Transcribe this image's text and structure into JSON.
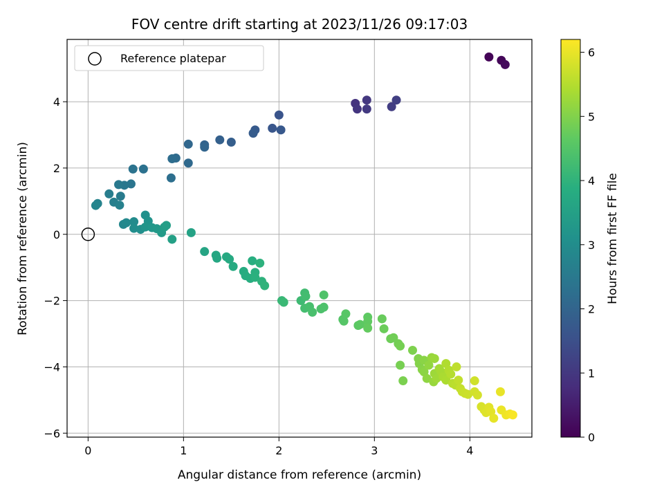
{
  "chart_data": {
    "type": "scatter",
    "title": "FOV centre drift starting at 2023/11/26 09:17:03",
    "xlabel": "Angular distance from reference (arcmin)",
    "ylabel": "Rotation from reference (arcmin)",
    "xlim": [
      -0.22,
      4.65
    ],
    "ylim": [
      -6.12,
      5.88
    ],
    "xticks": [
      0,
      1,
      2,
      3,
      4
    ],
    "xtick_labels": [
      "0",
      "1",
      "2",
      "3",
      "4"
    ],
    "yticks": [
      -6,
      -4,
      -2,
      0,
      2,
      4
    ],
    "ytick_labels": [
      "−6",
      "−4",
      "−2",
      "0",
      "2",
      "4"
    ],
    "grid": true,
    "legend": {
      "position": "top-left",
      "entries": [
        "Reference platepar"
      ]
    },
    "colorbar": {
      "label": "Hours from first FF file",
      "range": [
        0,
        6.2
      ],
      "ticks": [
        0,
        1,
        2,
        3,
        4,
        5,
        6
      ],
      "tick_labels": [
        "0",
        "1",
        "2",
        "3",
        "4",
        "5",
        "6"
      ],
      "colormap": "viridis"
    },
    "reference_point": {
      "x": 0,
      "y": 0
    },
    "points": [
      {
        "x": 4.2,
        "y": 5.35,
        "t": 0.05
      },
      {
        "x": 4.33,
        "y": 5.25,
        "t": 0.1
      },
      {
        "x": 4.37,
        "y": 5.12,
        "t": 0.15
      },
      {
        "x": 2.8,
        "y": 3.95,
        "t": 0.9
      },
      {
        "x": 2.82,
        "y": 3.78,
        "t": 0.95
      },
      {
        "x": 2.92,
        "y": 4.05,
        "t": 1.0
      },
      {
        "x": 2.92,
        "y": 3.78,
        "t": 1.05
      },
      {
        "x": 3.18,
        "y": 3.85,
        "t": 1.1
      },
      {
        "x": 3.23,
        "y": 4.05,
        "t": 1.15
      },
      {
        "x": 2.0,
        "y": 3.6,
        "t": 1.6
      },
      {
        "x": 1.93,
        "y": 3.2,
        "t": 1.65
      },
      {
        "x": 2.02,
        "y": 3.15,
        "t": 1.7
      },
      {
        "x": 1.75,
        "y": 3.15,
        "t": 1.75
      },
      {
        "x": 1.73,
        "y": 3.05,
        "t": 1.8
      },
      {
        "x": 1.5,
        "y": 2.78,
        "t": 1.85
      },
      {
        "x": 1.38,
        "y": 2.85,
        "t": 1.9
      },
      {
        "x": 1.22,
        "y": 2.7,
        "t": 1.95
      },
      {
        "x": 1.22,
        "y": 2.63,
        "t": 2.0
      },
      {
        "x": 1.05,
        "y": 2.72,
        "t": 2.05
      },
      {
        "x": 1.05,
        "y": 2.15,
        "t": 2.1
      },
      {
        "x": 0.92,
        "y": 2.3,
        "t": 2.15
      },
      {
        "x": 0.88,
        "y": 2.28,
        "t": 2.2
      },
      {
        "x": 0.87,
        "y": 1.7,
        "t": 2.25
      },
      {
        "x": 0.58,
        "y": 1.97,
        "t": 2.3
      },
      {
        "x": 0.47,
        "y": 1.97,
        "t": 2.35
      },
      {
        "x": 0.45,
        "y": 1.52,
        "t": 2.4
      },
      {
        "x": 0.38,
        "y": 1.48,
        "t": 2.45
      },
      {
        "x": 0.32,
        "y": 1.5,
        "t": 2.5
      },
      {
        "x": 0.34,
        "y": 1.15,
        "t": 2.55
      },
      {
        "x": 0.22,
        "y": 1.22,
        "t": 2.6
      },
      {
        "x": 0.27,
        "y": 0.97,
        "t": 2.65
      },
      {
        "x": 0.33,
        "y": 0.88,
        "t": 2.7
      },
      {
        "x": 0.1,
        "y": 0.93,
        "t": 2.75
      },
      {
        "x": 0.08,
        "y": 0.87,
        "t": 2.8
      },
      {
        "x": 0.37,
        "y": 0.3,
        "t": 2.85
      },
      {
        "x": 0.4,
        "y": 0.35,
        "t": 2.9
      },
      {
        "x": 0.48,
        "y": 0.38,
        "t": 2.95
      },
      {
        "x": 0.48,
        "y": 0.18,
        "t": 3.0
      },
      {
        "x": 0.55,
        "y": 0.15,
        "t": 3.05
      },
      {
        "x": 0.6,
        "y": 0.58,
        "t": 3.1
      },
      {
        "x": 0.63,
        "y": 0.4,
        "t": 3.15
      },
      {
        "x": 0.6,
        "y": 0.22,
        "t": 3.2
      },
      {
        "x": 0.67,
        "y": 0.2,
        "t": 3.25
      },
      {
        "x": 0.72,
        "y": 0.17,
        "t": 3.3
      },
      {
        "x": 0.77,
        "y": 0.05,
        "t": 3.35
      },
      {
        "x": 0.8,
        "y": 0.22,
        "t": 3.4
      },
      {
        "x": 0.82,
        "y": 0.27,
        "t": 3.45
      },
      {
        "x": 0.88,
        "y": -0.15,
        "t": 3.5
      },
      {
        "x": 1.08,
        "y": 0.05,
        "t": 3.55
      },
      {
        "x": 1.22,
        "y": -0.52,
        "t": 3.6
      },
      {
        "x": 1.34,
        "y": -0.63,
        "t": 3.65
      },
      {
        "x": 1.35,
        "y": -0.72,
        "t": 3.7
      },
      {
        "x": 1.45,
        "y": -0.68,
        "t": 3.72
      },
      {
        "x": 1.48,
        "y": -0.75,
        "t": 3.75
      },
      {
        "x": 1.52,
        "y": -0.97,
        "t": 3.78
      },
      {
        "x": 1.63,
        "y": -1.12,
        "t": 3.8
      },
      {
        "x": 1.65,
        "y": -1.25,
        "t": 3.82
      },
      {
        "x": 1.7,
        "y": -1.33,
        "t": 3.85
      },
      {
        "x": 1.72,
        "y": -0.8,
        "t": 3.87
      },
      {
        "x": 1.75,
        "y": -1.15,
        "t": 3.9
      },
      {
        "x": 1.75,
        "y": -1.3,
        "t": 3.92
      },
      {
        "x": 1.8,
        "y": -0.87,
        "t": 3.95
      },
      {
        "x": 1.82,
        "y": -1.42,
        "t": 3.97
      },
      {
        "x": 1.85,
        "y": -1.55,
        "t": 4.0
      },
      {
        "x": 2.03,
        "y": -2.0,
        "t": 4.1
      },
      {
        "x": 2.05,
        "y": -2.05,
        "t": 4.15
      },
      {
        "x": 2.23,
        "y": -2.0,
        "t": 4.2
      },
      {
        "x": 2.27,
        "y": -1.77,
        "t": 4.25
      },
      {
        "x": 2.28,
        "y": -1.87,
        "t": 4.28
      },
      {
        "x": 2.27,
        "y": -2.23,
        "t": 4.3
      },
      {
        "x": 2.32,
        "y": -2.18,
        "t": 4.33
      },
      {
        "x": 2.35,
        "y": -2.35,
        "t": 4.36
      },
      {
        "x": 2.44,
        "y": -2.25,
        "t": 4.4
      },
      {
        "x": 2.47,
        "y": -2.2,
        "t": 4.42
      },
      {
        "x": 2.47,
        "y": -1.83,
        "t": 4.45
      },
      {
        "x": 2.67,
        "y": -2.57,
        "t": 4.5
      },
      {
        "x": 2.68,
        "y": -2.62,
        "t": 4.53
      },
      {
        "x": 2.7,
        "y": -2.4,
        "t": 4.55
      },
      {
        "x": 2.83,
        "y": -2.75,
        "t": 4.6
      },
      {
        "x": 2.85,
        "y": -2.72,
        "t": 4.62
      },
      {
        "x": 2.93,
        "y": -2.5,
        "t": 4.65
      },
      {
        "x": 2.93,
        "y": -2.63,
        "t": 4.67
      },
      {
        "x": 2.93,
        "y": -2.83,
        "t": 4.7
      },
      {
        "x": 3.08,
        "y": -2.55,
        "t": 4.75
      },
      {
        "x": 3.1,
        "y": -2.85,
        "t": 4.78
      },
      {
        "x": 3.17,
        "y": -3.15,
        "t": 4.8
      },
      {
        "x": 3.2,
        "y": -3.12,
        "t": 4.83
      },
      {
        "x": 3.25,
        "y": -3.3,
        "t": 4.86
      },
      {
        "x": 3.27,
        "y": -3.37,
        "t": 4.88
      },
      {
        "x": 3.27,
        "y": -3.95,
        "t": 4.9
      },
      {
        "x": 3.3,
        "y": -4.42,
        "t": 4.93
      },
      {
        "x": 3.4,
        "y": -3.5,
        "t": 4.96
      },
      {
        "x": 3.46,
        "y": -3.75,
        "t": 5.0
      },
      {
        "x": 3.47,
        "y": -3.9,
        "t": 5.02
      },
      {
        "x": 3.5,
        "y": -4.08,
        "t": 5.05
      },
      {
        "x": 3.52,
        "y": -3.8,
        "t": 5.08
      },
      {
        "x": 3.52,
        "y": -4.15,
        "t": 5.1
      },
      {
        "x": 3.55,
        "y": -4.35,
        "t": 5.13
      },
      {
        "x": 3.57,
        "y": -3.95,
        "t": 5.16
      },
      {
        "x": 3.6,
        "y": -3.72,
        "t": 5.2
      },
      {
        "x": 3.62,
        "y": -4.45,
        "t": 5.22
      },
      {
        "x": 3.63,
        "y": -3.75,
        "t": 5.25
      },
      {
        "x": 3.63,
        "y": -4.2,
        "t": 5.27
      },
      {
        "x": 3.65,
        "y": -4.35,
        "t": 5.3
      },
      {
        "x": 3.68,
        "y": -4.05,
        "t": 5.33
      },
      {
        "x": 3.7,
        "y": -4.15,
        "t": 5.36
      },
      {
        "x": 3.72,
        "y": -4.3,
        "t": 5.4
      },
      {
        "x": 3.75,
        "y": -4.4,
        "t": 5.42
      },
      {
        "x": 3.75,
        "y": -3.9,
        "t": 5.45
      },
      {
        "x": 3.78,
        "y": -4.1,
        "t": 5.48
      },
      {
        "x": 3.8,
        "y": -4.22,
        "t": 5.5
      },
      {
        "x": 3.82,
        "y": -4.5,
        "t": 5.53
      },
      {
        "x": 3.85,
        "y": -4.55,
        "t": 5.56
      },
      {
        "x": 3.86,
        "y": -4.0,
        "t": 5.6
      },
      {
        "x": 3.88,
        "y": -4.4,
        "t": 5.62
      },
      {
        "x": 3.9,
        "y": -4.65,
        "t": 5.65
      },
      {
        "x": 3.92,
        "y": -4.75,
        "t": 5.68
      },
      {
        "x": 3.95,
        "y": -4.8,
        "t": 5.7
      },
      {
        "x": 3.98,
        "y": -4.83,
        "t": 5.72
      },
      {
        "x": 4.05,
        "y": -4.42,
        "t": 5.75
      },
      {
        "x": 4.05,
        "y": -4.75,
        "t": 5.78
      },
      {
        "x": 4.08,
        "y": -4.85,
        "t": 5.8
      },
      {
        "x": 4.12,
        "y": -5.2,
        "t": 5.83
      },
      {
        "x": 4.15,
        "y": -5.3,
        "t": 5.86
      },
      {
        "x": 4.17,
        "y": -5.38,
        "t": 5.9
      },
      {
        "x": 4.2,
        "y": -5.22,
        "t": 5.92
      },
      {
        "x": 4.22,
        "y": -5.35,
        "t": 5.95
      },
      {
        "x": 4.25,
        "y": -5.55,
        "t": 5.98
      },
      {
        "x": 4.32,
        "y": -4.75,
        "t": 6.0
      },
      {
        "x": 4.33,
        "y": -5.3,
        "t": 6.03
      },
      {
        "x": 4.38,
        "y": -5.45,
        "t": 6.06
      },
      {
        "x": 4.42,
        "y": -5.42,
        "t": 6.1
      },
      {
        "x": 4.45,
        "y": -5.45,
        "t": 6.15
      }
    ]
  }
}
